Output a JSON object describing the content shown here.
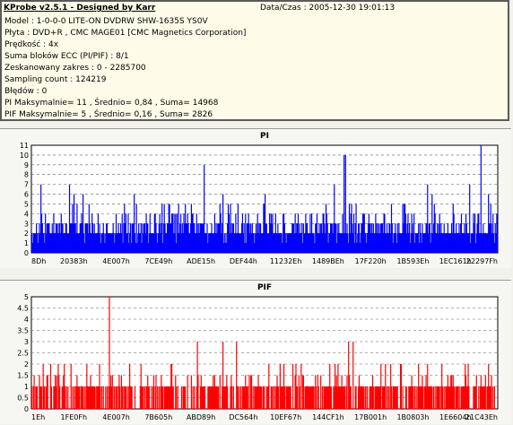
{
  "app_title": "KProbe v2.5.1 - Designed by Karr",
  "date_time": "Data/Czas : 2005-12-30 19:01:13",
  "info_lines": [
    "Model : 1-0-0-0 LITE-ON DVDRW SHW-1635S  YS0V",
    "Płyta : DVD+R , CMC MAGE01 [CMC Magnetics Corporation]",
    "Prędkość : 4x",
    "Suma bloków ECC (PI/PIF) : 8/1",
    "Zeskanowany zakres : 0 - 2285700",
    "Sampling count : 124219",
    "Błędów : 0",
    "PI Maksymalnie= 11 , Średnio= 0,84 , Suma= 14968",
    "PIF Maksymalnie= 5 , Średnio= 0,16 , Suma= 2826"
  ],
  "colors": {
    "pi": "#0000ff",
    "pif": "#ff0000",
    "grid": "#606060",
    "axis": "#000000",
    "chart_bg": "#ffffff"
  },
  "chart_data": [
    {
      "type": "bar",
      "title": "PI",
      "ylim": [
        0,
        11
      ],
      "y_ticks": [
        0,
        1,
        2,
        3,
        4,
        5,
        6,
        7,
        8,
        9,
        10,
        11
      ],
      "x_tick_labels": [
        "8Dh",
        "20383h",
        "4E007h",
        "7CE49h",
        "ADE15h",
        "DEF44h",
        "11232Eh",
        "1489BEh",
        "17F220h",
        "1B593Eh",
        "1EC161h",
        "22297Fh"
      ],
      "grid": true,
      "baseline": 2,
      "peaks": [
        {
          "x_fraction": 0.02,
          "value": 7
        },
        {
          "x_fraction": 0.08,
          "value": 7
        },
        {
          "x_fraction": 0.09,
          "value": 6
        },
        {
          "x_fraction": 0.11,
          "value": 6
        },
        {
          "x_fraction": 0.22,
          "value": 6
        },
        {
          "x_fraction": 0.37,
          "value": 9
        },
        {
          "x_fraction": 0.41,
          "value": 6
        },
        {
          "x_fraction": 0.5,
          "value": 6
        },
        {
          "x_fraction": 0.65,
          "value": 7
        },
        {
          "x_fraction": 0.67,
          "value": 10
        },
        {
          "x_fraction": 0.674,
          "value": 10
        },
        {
          "x_fraction": 0.85,
          "value": 7
        },
        {
          "x_fraction": 0.86,
          "value": 6
        },
        {
          "x_fraction": 0.94,
          "value": 7
        },
        {
          "x_fraction": 0.964,
          "value": 11
        },
        {
          "x_fraction": 0.98,
          "value": 6
        }
      ]
    },
    {
      "type": "bar",
      "title": "PIF",
      "ylim": [
        0,
        5
      ],
      "y_ticks": [
        0,
        0.5,
        1,
        1.5,
        2,
        2.5,
        3,
        3.5,
        4,
        4.5,
        5
      ],
      "x_tick_labels": [
        "1Eh",
        "1FE0Fh",
        "4E007h",
        "7B605h",
        "ABD89h",
        "DC564h",
        "10EF67h",
        "144CF1h",
        "17B001h",
        "1B0803h",
        "1E6604h",
        "21C43Eh"
      ],
      "grid": true,
      "peaks": [
        {
          "x_fraction": 0.04,
          "value": 2
        },
        {
          "x_fraction": 0.07,
          "value": 2
        },
        {
          "x_fraction": 0.167,
          "value": 5
        },
        {
          "x_fraction": 0.3,
          "value": 2
        },
        {
          "x_fraction": 0.355,
          "value": 3
        },
        {
          "x_fraction": 0.41,
          "value": 3
        },
        {
          "x_fraction": 0.44,
          "value": 3
        },
        {
          "x_fraction": 0.56,
          "value": 2
        },
        {
          "x_fraction": 0.64,
          "value": 2
        },
        {
          "x_fraction": 0.68,
          "value": 3
        },
        {
          "x_fraction": 0.69,
          "value": 3
        },
        {
          "x_fraction": 0.76,
          "value": 2
        },
        {
          "x_fraction": 0.85,
          "value": 2
        },
        {
          "x_fraction": 0.93,
          "value": 2
        },
        {
          "x_fraction": 0.98,
          "value": 2
        }
      ]
    }
  ]
}
